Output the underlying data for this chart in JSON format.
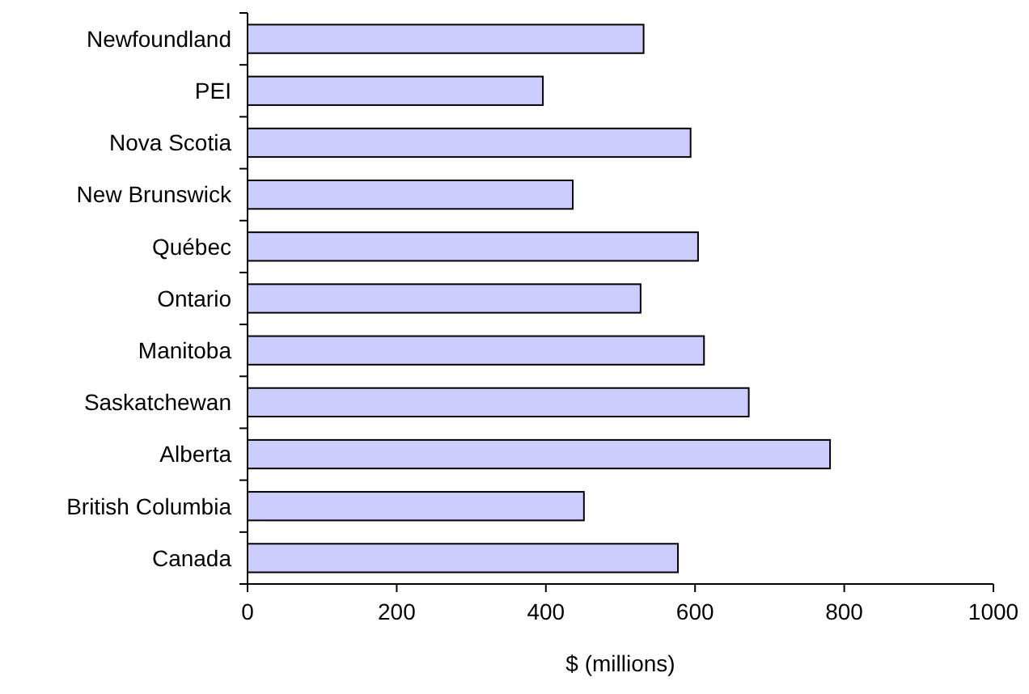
{
  "chart_data": {
    "type": "bar",
    "orientation": "horizontal",
    "categories": [
      "Newfoundland",
      "PEI",
      "Nova Scotia",
      "New Brunswick",
      "Québec",
      "Ontario",
      "Manitoba",
      "Saskatchewan",
      "Alberta",
      "British Columbia",
      "Canada"
    ],
    "values": [
      531,
      396,
      594,
      436,
      604,
      527,
      612,
      672,
      781,
      451,
      577
    ],
    "color": "#ccccff",
    "xlim": [
      0,
      1000
    ],
    "xticks": [
      0,
      200,
      400,
      600,
      800,
      1000
    ],
    "xlabel": "$ (millions)",
    "grid": false
  }
}
